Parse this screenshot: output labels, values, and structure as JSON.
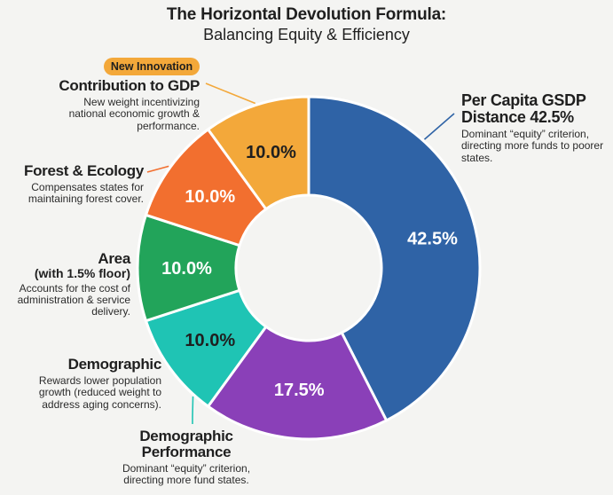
{
  "chart_data": {
    "type": "pie",
    "title": "The Horizontal Devolution Formula:",
    "subtitle": "Balancing Equity & Efficiency",
    "donut": true,
    "slices": [
      {
        "key": "gsdp",
        "label": "Per Capita GSDP Distance 42.5%",
        "value": 42.5,
        "value_label": "42.5%",
        "color": "#2f63a6",
        "text_color": "#ffffff",
        "description": "Dominant “equity” criterion, directing more funds to poorer states."
      },
      {
        "key": "demperf",
        "label": "Demographic Performance",
        "value": 17.5,
        "value_label": "17.5%",
        "color": "#8a40b8",
        "text_color": "#ffffff",
        "description": "Dominant “equity” criterion, directing more fund states."
      },
      {
        "key": "demographic",
        "label": "Demographic",
        "value": 10.0,
        "value_label": "10.0%",
        "color": "#1fc4b4",
        "text_color": "#1f1f1f",
        "description": "Rewards lower population growth (reduced weight to address aging concerns)."
      },
      {
        "key": "area",
        "label": "Area",
        "sublabel": "(with 1.5% floor)",
        "value": 10.0,
        "value_label": "10.0%",
        "color": "#22a45a",
        "text_color": "#ffffff",
        "description": "Accounts for the cost of administration & service delivery."
      },
      {
        "key": "forest",
        "label": "Forest & Ecology",
        "value": 10.0,
        "value_label": "10.0%",
        "color": "#f26f2f",
        "text_color": "#ffffff",
        "description": "Compensates states for maintaining forest cover."
      },
      {
        "key": "gdp",
        "label": "Contribution to GDP",
        "value": 10.0,
        "value_label": "10.0%",
        "color": "#f3a83a",
        "text_color": "#1f1f1f",
        "description": "New weight incentivizing national economic growth & performance.",
        "badge": "New Innovation"
      }
    ]
  }
}
